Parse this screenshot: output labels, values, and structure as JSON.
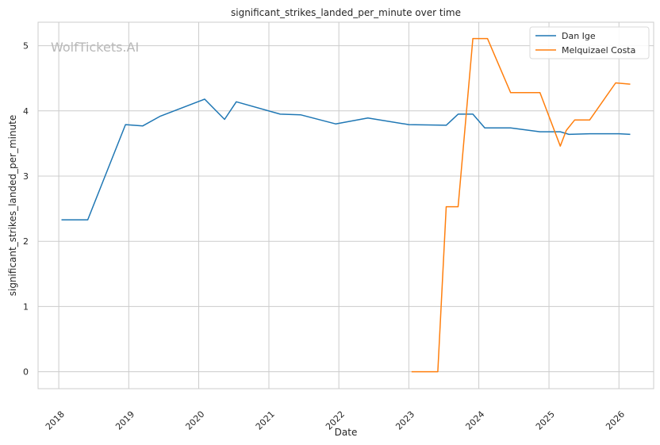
{
  "watermark": "WolfTickets.AI",
  "chart_data": {
    "type": "line",
    "title": "significant_strikes_landed_per_minute over time",
    "xlabel": "Date",
    "ylabel": "significant_strikes_landed_per_minute",
    "x_ticks": [
      "2018",
      "2019",
      "2020",
      "2021",
      "2022",
      "2023",
      "2024",
      "2025",
      "2026"
    ],
    "y_ticks": [
      0,
      1,
      2,
      3,
      4,
      5
    ],
    "xlim": [
      "2017-09-15",
      "2026-07-01"
    ],
    "ylim": [
      -0.26,
      5.36
    ],
    "grid": true,
    "legend_position": "top-right",
    "series": [
      {
        "name": "Dan Ige",
        "color": "#1f77b4",
        "points": [
          [
            "2018-01-15",
            2.33
          ],
          [
            "2018-06-01",
            2.33
          ],
          [
            "2018-12-15",
            3.79
          ],
          [
            "2019-03-15",
            3.77
          ],
          [
            "2019-06-15",
            3.92
          ],
          [
            "2020-02-01",
            4.18
          ],
          [
            "2020-05-15",
            3.87
          ],
          [
            "2020-07-15",
            4.14
          ],
          [
            "2021-03-01",
            3.95
          ],
          [
            "2021-06-15",
            3.94
          ],
          [
            "2021-12-15",
            3.8
          ],
          [
            "2022-06-01",
            3.89
          ],
          [
            "2023-01-01",
            3.79
          ],
          [
            "2023-07-15",
            3.78
          ],
          [
            "2023-09-15",
            3.95
          ],
          [
            "2023-12-01",
            3.95
          ],
          [
            "2024-02-01",
            3.74
          ],
          [
            "2024-06-15",
            3.74
          ],
          [
            "2024-11-15",
            3.68
          ],
          [
            "2025-03-01",
            3.68
          ],
          [
            "2025-04-15",
            3.64
          ],
          [
            "2025-08-01",
            3.65
          ],
          [
            "2026-01-01",
            3.65
          ],
          [
            "2026-03-01",
            3.64
          ]
        ]
      },
      {
        "name": "Melquizael Costa",
        "color": "#ff7f0e",
        "points": [
          [
            "2023-01-15",
            0.0
          ],
          [
            "2023-06-01",
            0.0
          ],
          [
            "2023-07-15",
            2.53
          ],
          [
            "2023-09-15",
            2.53
          ],
          [
            "2023-12-01",
            5.11
          ],
          [
            "2024-02-15",
            5.11
          ],
          [
            "2024-06-15",
            4.28
          ],
          [
            "2024-11-15",
            4.28
          ],
          [
            "2025-03-01",
            3.46
          ],
          [
            "2025-04-01",
            3.7
          ],
          [
            "2025-05-15",
            3.86
          ],
          [
            "2025-08-01",
            3.86
          ],
          [
            "2025-12-15",
            4.43
          ],
          [
            "2026-03-01",
            4.41
          ]
        ]
      }
    ]
  }
}
